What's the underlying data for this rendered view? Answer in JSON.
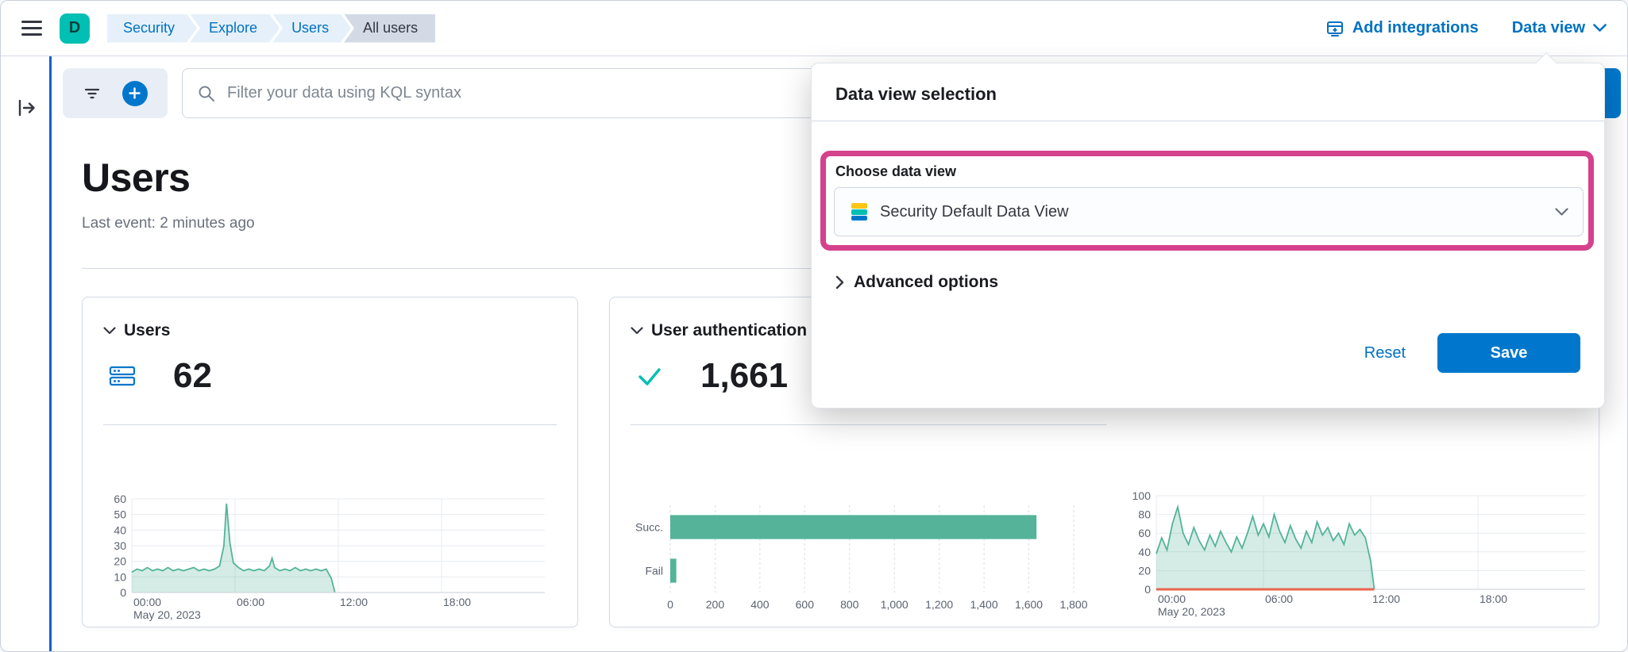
{
  "header": {
    "space_initial": "D",
    "breadcrumbs": [
      {
        "label": "Security"
      },
      {
        "label": "Explore"
      },
      {
        "label": "Users"
      },
      {
        "label": "All users"
      }
    ],
    "add_integrations_label": "Add integrations",
    "data_view_label": "Data view"
  },
  "filter_bar": {
    "search_placeholder": "Filter your data using KQL syntax"
  },
  "page": {
    "title": "Users",
    "last_event": "Last event: 2 minutes ago"
  },
  "panels": {
    "users": {
      "title": "Users",
      "count": "62"
    },
    "auth": {
      "title": "User authentication",
      "count": "1,661"
    }
  },
  "popover": {
    "title": "Data view selection",
    "choose_label": "Choose data view",
    "selected_data_view": "Security Default Data View",
    "advanced_options_label": "Advanced options",
    "reset_label": "Reset",
    "save_label": "Save"
  },
  "colors": {
    "primary": "#0077CC",
    "link": "#0071C2",
    "highlight": "#D6418C",
    "chart_green": "#54B399",
    "baseline_orange": "#E7664C",
    "space_avatar": "#00BFB3"
  },
  "chart_data": [
    {
      "id": "users_area",
      "type": "area",
      "panel": "Users",
      "x_unit": "hours",
      "xlim": [
        0,
        24
      ],
      "ylim": [
        0,
        60
      ],
      "yticks": [
        0,
        10,
        20,
        30,
        40,
        50,
        60
      ],
      "xticks": [
        {
          "v": 0,
          "label": "00:00"
        },
        {
          "v": 6,
          "label": "06:00"
        },
        {
          "v": 12,
          "label": "12:00"
        },
        {
          "v": 18,
          "label": "18:00"
        }
      ],
      "x_secondary_label": "May 20, 2023",
      "color": "#54B399",
      "points": [
        [
          0,
          13
        ],
        [
          0.3,
          15
        ],
        [
          0.6,
          14
        ],
        [
          0.9,
          16
        ],
        [
          1.2,
          14
        ],
        [
          1.5,
          15
        ],
        [
          1.8,
          14
        ],
        [
          2.1,
          16
        ],
        [
          2.4,
          14
        ],
        [
          2.7,
          15
        ],
        [
          3,
          14
        ],
        [
          3.3,
          15
        ],
        [
          3.6,
          16
        ],
        [
          3.9,
          14
        ],
        [
          4.2,
          15
        ],
        [
          4.5,
          14
        ],
        [
          4.8,
          15
        ],
        [
          5.1,
          17
        ],
        [
          5.35,
          30
        ],
        [
          5.5,
          57
        ],
        [
          5.7,
          32
        ],
        [
          5.9,
          19
        ],
        [
          6.2,
          16
        ],
        [
          6.5,
          14
        ],
        [
          6.8,
          15
        ],
        [
          7.1,
          14
        ],
        [
          7.4,
          15
        ],
        [
          7.7,
          14
        ],
        [
          8,
          17
        ],
        [
          8.15,
          22
        ],
        [
          8.3,
          16
        ],
        [
          8.6,
          14
        ],
        [
          8.9,
          15
        ],
        [
          9.2,
          14
        ],
        [
          9.5,
          16
        ],
        [
          9.8,
          14
        ],
        [
          10.1,
          15
        ],
        [
          10.4,
          14
        ],
        [
          10.7,
          15
        ],
        [
          11,
          14
        ],
        [
          11.3,
          15
        ],
        [
          11.6,
          9
        ],
        [
          11.8,
          0
        ]
      ]
    },
    {
      "id": "auth_bar",
      "type": "hbar",
      "panel": "User authentication",
      "categories": [
        "Succ.",
        "Fail"
      ],
      "values": [
        1634,
        27
      ],
      "xlim": [
        0,
        1800
      ],
      "xticks": [
        0,
        200,
        400,
        600,
        800,
        1000,
        1200,
        1400,
        1600,
        1800
      ],
      "xtick_labels": [
        "0",
        "200",
        "400",
        "600",
        "800",
        "1,000",
        "1,200",
        "1,400",
        "1,600",
        "1,800"
      ],
      "color": "#54B399"
    },
    {
      "id": "auth_area",
      "type": "area",
      "panel": "User authentication",
      "x_unit": "hours",
      "xlim": [
        0,
        24
      ],
      "ylim": [
        0,
        100
      ],
      "yticks": [
        0,
        20,
        40,
        60,
        80,
        100
      ],
      "xticks": [
        {
          "v": 0,
          "label": "00:00"
        },
        {
          "v": 6,
          "label": "06:00"
        },
        {
          "v": 12,
          "label": "12:00"
        },
        {
          "v": 18,
          "label": "18:00"
        }
      ],
      "x_secondary_label": "May 20, 2023",
      "color": "#54B399",
      "baseline": {
        "color": "#E7664C",
        "from": 0,
        "to": 12.2
      },
      "points": [
        [
          0,
          38
        ],
        [
          0.3,
          55
        ],
        [
          0.6,
          42
        ],
        [
          0.9,
          70
        ],
        [
          1.2,
          88
        ],
        [
          1.5,
          60
        ],
        [
          1.8,
          48
        ],
        [
          2.1,
          66
        ],
        [
          2.4,
          52
        ],
        [
          2.7,
          42
        ],
        [
          3,
          58
        ],
        [
          3.3,
          46
        ],
        [
          3.6,
          62
        ],
        [
          3.9,
          50
        ],
        [
          4.2,
          40
        ],
        [
          4.5,
          56
        ],
        [
          4.8,
          44
        ],
        [
          5.1,
          60
        ],
        [
          5.4,
          78
        ],
        [
          5.7,
          58
        ],
        [
          6,
          70
        ],
        [
          6.3,
          56
        ],
        [
          6.6,
          80
        ],
        [
          6.9,
          62
        ],
        [
          7.2,
          50
        ],
        [
          7.5,
          68
        ],
        [
          7.8,
          54
        ],
        [
          8.1,
          44
        ],
        [
          8.4,
          62
        ],
        [
          8.7,
          50
        ],
        [
          9,
          72
        ],
        [
          9.3,
          58
        ],
        [
          9.6,
          66
        ],
        [
          9.9,
          52
        ],
        [
          10.2,
          60
        ],
        [
          10.5,
          48
        ],
        [
          10.8,
          70
        ],
        [
          11.1,
          58
        ],
        [
          11.4,
          64
        ],
        [
          11.7,
          55
        ],
        [
          12,
          30
        ],
        [
          12.2,
          0
        ]
      ]
    }
  ]
}
